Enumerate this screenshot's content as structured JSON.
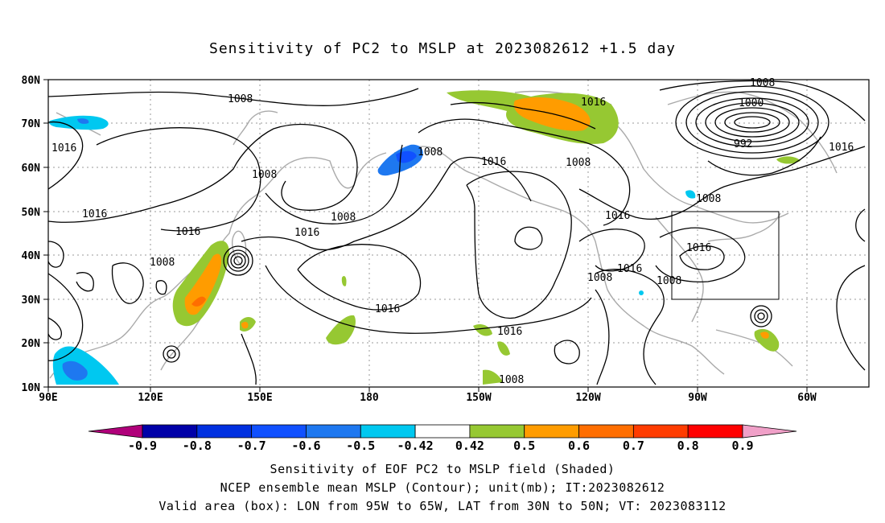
{
  "title": "Sensitivity of PC2 to MSLP at 2023082612 +1.5 day",
  "lon_ticks": [
    "90E",
    "120E",
    "150E",
    "180",
    "150W",
    "120W",
    "90W",
    "60W"
  ],
  "lat_ticks": [
    "80N",
    "70N",
    "60N",
    "50N",
    "40N",
    "30N",
    "20N",
    "10N"
  ],
  "contour_labels": [
    "1008",
    "1008",
    "1016",
    "1016",
    "1016",
    "1008",
    "1016",
    "1008",
    "1016",
    "1008",
    "1008",
    "1008",
    "1016",
    "1016",
    "1016",
    "1016",
    "1016",
    "1008",
    "1000",
    "992",
    "1016",
    "1008",
    "1016",
    "1016",
    "1008",
    "1008",
    "1016"
  ],
  "colorbar": {
    "labels": [
      "-0.9",
      "-0.8",
      "-0.7",
      "-0.6",
      "-0.5",
      "-0.42",
      "0.42",
      "0.5",
      "0.6",
      "0.7",
      "0.8",
      "0.9"
    ],
    "colors": [
      "#b0007a",
      "#0000a8",
      "#0030e0",
      "#1050ff",
      "#1e78f0",
      "#00c8f0",
      "#ffffff",
      "#96c832",
      "#ff9c00",
      "#ff6e00",
      "#ff3c00",
      "#ff0000",
      "#f0a0c8"
    ]
  },
  "captions": {
    "line1": "Sensitivity of EOF PC2 to MSLP field (Shaded)",
    "line2": "NCEP ensemble mean MSLP (Contour); unit(mb); IT:2023082612",
    "line3": "Valid area (box): LON from 95W to 65W, LAT from 30N to 50N; VT: 2023083112"
  }
}
